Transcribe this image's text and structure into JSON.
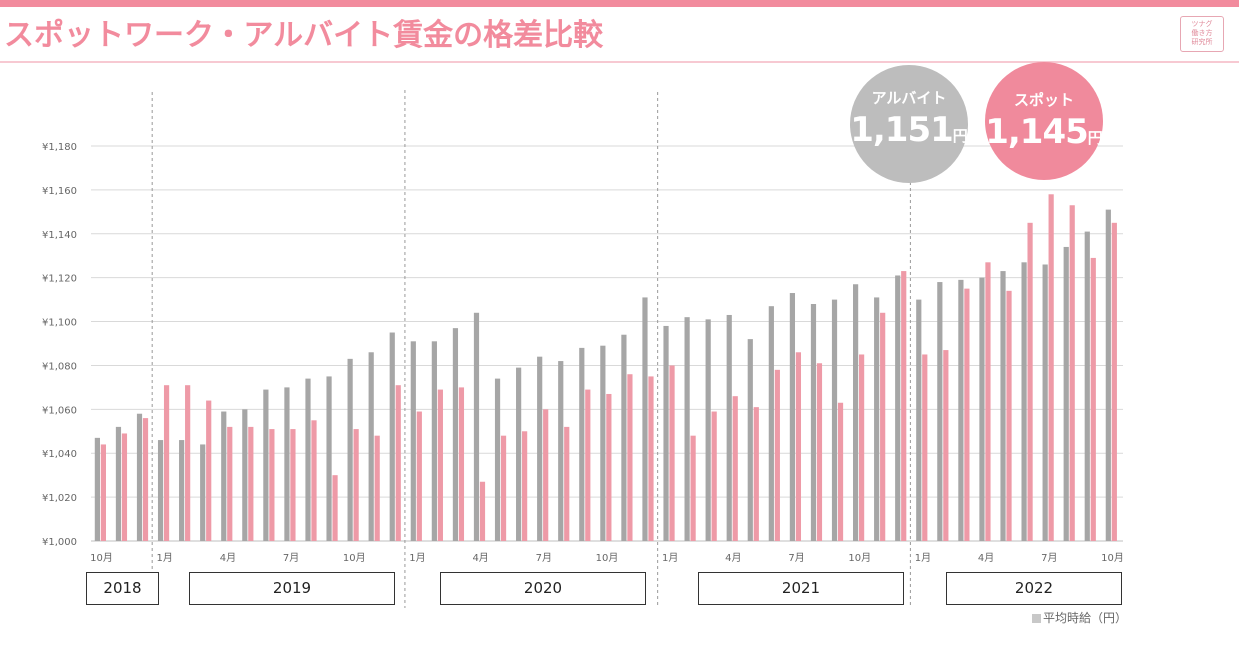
{
  "title": "スポットワーク・アルバイト賃金の格差比較",
  "logo_text": "ツナグ働き方研究所",
  "colors": {
    "accent": "#f28b9d",
    "arbeit_bar": "#a6a6a6",
    "spot_bar": "#ee9aa7",
    "arbeit_circle": "#bdbdbd",
    "spot_circle": "#f08a9c",
    "grid": "#d9d9d9"
  },
  "callouts": {
    "arbeit": {
      "label": "アルバイト",
      "value": "1,151",
      "unit": "円"
    },
    "spot": {
      "label": "スポット",
      "value": "1,145",
      "unit": "円"
    }
  },
  "year_boxes": [
    "2018",
    "2019",
    "2020",
    "2021",
    "2022"
  ],
  "legend": "平均時給（円）",
  "chart_data": {
    "type": "bar",
    "ylim": [
      1000,
      1180
    ],
    "yticks": [
      "¥1,000",
      "¥1,020",
      "¥1,040",
      "¥1,060",
      "¥1,080",
      "¥1,100",
      "¥1,120",
      "¥1,140",
      "¥1,160",
      "¥1,180"
    ],
    "categories": [
      "2018-10",
      "2018-11",
      "2018-12",
      "2019-01",
      "2019-02",
      "2019-03",
      "2019-04",
      "2019-05",
      "2019-06",
      "2019-07",
      "2019-08",
      "2019-09",
      "2019-10",
      "2019-11",
      "2019-12",
      "2020-01",
      "2020-02",
      "2020-03",
      "2020-04",
      "2020-05",
      "2020-06",
      "2020-07",
      "2020-08",
      "2020-09",
      "2020-10",
      "2020-11",
      "2020-12",
      "2021-01",
      "2021-02",
      "2021-03",
      "2021-04",
      "2021-05",
      "2021-06",
      "2021-07",
      "2021-08",
      "2021-09",
      "2021-10",
      "2021-11",
      "2021-12",
      "2022-01",
      "2022-02",
      "2022-03",
      "2022-04",
      "2022-05",
      "2022-06",
      "2022-07",
      "2022-08",
      "2022-09",
      "2022-10"
    ],
    "x_tick_labels": [
      {
        "index": 0,
        "label": "10月"
      },
      {
        "index": 3,
        "label": "1月"
      },
      {
        "index": 6,
        "label": "4月"
      },
      {
        "index": 9,
        "label": "7月"
      },
      {
        "index": 12,
        "label": "10月"
      },
      {
        "index": 15,
        "label": "1月"
      },
      {
        "index": 18,
        "label": "4月"
      },
      {
        "index": 21,
        "label": "7月"
      },
      {
        "index": 24,
        "label": "10月"
      },
      {
        "index": 27,
        "label": "1月"
      },
      {
        "index": 30,
        "label": "4月"
      },
      {
        "index": 33,
        "label": "7月"
      },
      {
        "index": 36,
        "label": "10月"
      },
      {
        "index": 39,
        "label": "1月"
      },
      {
        "index": 42,
        "label": "4月"
      },
      {
        "index": 45,
        "label": "7月"
      },
      {
        "index": 48,
        "label": "10月"
      }
    ],
    "series": [
      {
        "name": "アルバイト",
        "values": [
          1047,
          1052,
          1058,
          1046,
          1046,
          1044,
          1059,
          1060,
          1069,
          1070,
          1074,
          1075,
          1083,
          1086,
          1095,
          1091,
          1091,
          1097,
          1104,
          1074,
          1079,
          1084,
          1082,
          1088,
          1089,
          1094,
          1111,
          1098,
          1102,
          1101,
          1103,
          1092,
          1107,
          1113,
          1108,
          1110,
          1117,
          1111,
          1121,
          1110,
          1118,
          1119,
          1120,
          1123,
          1127,
          1126,
          1134,
          1141,
          1151
        ]
      },
      {
        "name": "スポット",
        "values": [
          1044,
          1049,
          1056,
          1071,
          1071,
          1064,
          1052,
          1052,
          1051,
          1051,
          1055,
          1030,
          1051,
          1048,
          1071,
          1059,
          1069,
          1070,
          1027,
          1048,
          1050,
          1060,
          1052,
          1069,
          1067,
          1076,
          1075,
          1080,
          1048,
          1059,
          1066,
          1061,
          1078,
          1086,
          1081,
          1063,
          1085,
          1104,
          1123,
          1085,
          1087,
          1115,
          1127,
          1114,
          1145,
          1158,
          1153,
          1129,
          1145
        ]
      }
    ]
  }
}
